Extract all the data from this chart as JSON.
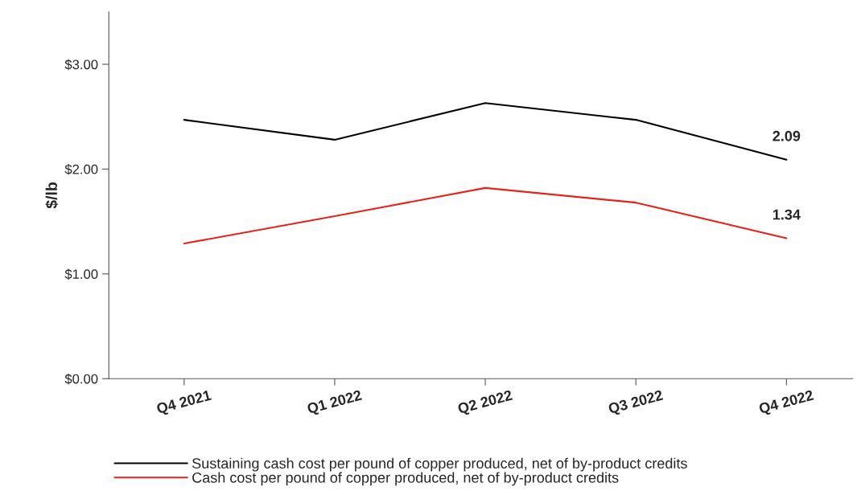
{
  "chart_data": {
    "type": "line",
    "ylabel": "$/lb",
    "categories": [
      "Q4 2021",
      "Q1 2022",
      "Q2 2022",
      "Q3 2022",
      "Q4 2022"
    ],
    "series": [
      {
        "name": "Sustaining cash cost per pound of copper produced, net of by-product credits",
        "color": "#000000",
        "values": [
          2.47,
          2.28,
          2.63,
          2.47,
          2.09
        ],
        "value_labels": [
          null,
          null,
          null,
          null,
          "2.09"
        ]
      },
      {
        "name": "Cash cost per pound of copper produced, net of by-product credits",
        "color": "#e8221b",
        "values": [
          1.29,
          1.55,
          1.82,
          1.68,
          1.34
        ],
        "value_labels": [
          null,
          null,
          null,
          null,
          "1.34"
        ]
      }
    ],
    "ylim": [
      0,
      3.5
    ],
    "yticks": [
      {
        "value": 0,
        "label": "$0.00"
      },
      {
        "value": 1,
        "label": "$1.00"
      },
      {
        "value": 2,
        "label": "$2.00"
      },
      {
        "value": 3,
        "label": "$3.00"
      }
    ],
    "grid": false,
    "legend": "bottom",
    "marker": "none",
    "line_style": "solid"
  }
}
